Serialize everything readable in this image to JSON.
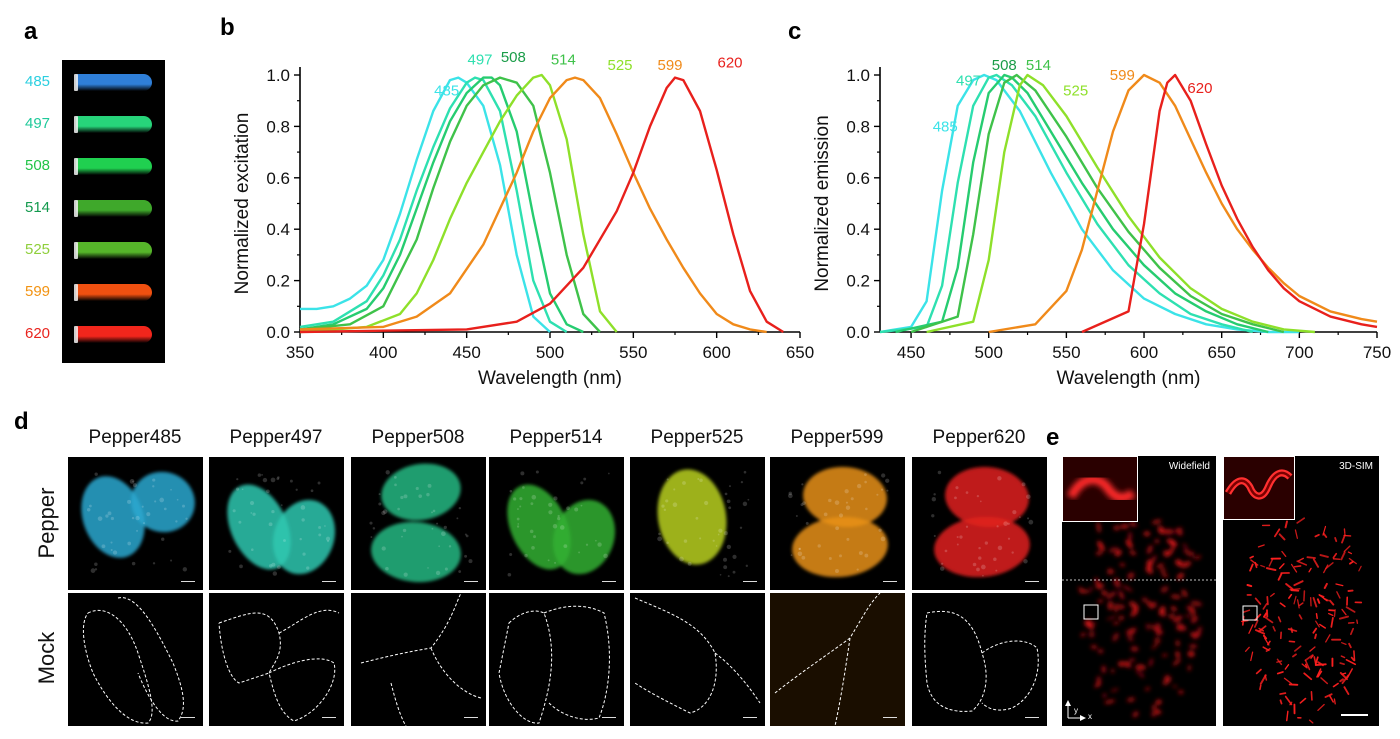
{
  "panels": {
    "a": "a",
    "b": "b",
    "c": "c",
    "d": "d",
    "e": "e"
  },
  "tubes": [
    {
      "label": "485",
      "label_color": "#2bcfe0",
      "tube_color": "#2f7fd8"
    },
    {
      "label": "497",
      "label_color": "#1fc99a",
      "tube_color": "#27d47a"
    },
    {
      "label": "508",
      "label_color": "#22c447",
      "tube_color": "#20d050"
    },
    {
      "label": "514",
      "label_color": "#139a4e",
      "tube_color": "#3fa82b"
    },
    {
      "label": "525",
      "label_color": "#8fcf3c",
      "tube_color": "#56b52a"
    },
    {
      "label": "599",
      "label_color": "#f29312",
      "tube_color": "#f05010"
    },
    {
      "label": "620",
      "label_color": "#e8241e",
      "tube_color": "#f2261c"
    }
  ],
  "chart_data": [
    {
      "type": "line",
      "panel": "b",
      "xlabel": "Wavelength (nm)",
      "ylabel": "Normalized excitation",
      "xlim": [
        350,
        650
      ],
      "ylim": [
        0,
        1.0
      ],
      "xticks": [
        "350",
        "400",
        "450",
        "500",
        "550",
        "600",
        "650"
      ],
      "yticks": [
        "0.0",
        "0.2",
        "0.4",
        "0.6",
        "0.8",
        "1.0"
      ],
      "series": [
        {
          "name": "485",
          "color": "#3be3e8",
          "x": [
            350,
            360,
            370,
            380,
            390,
            400,
            410,
            420,
            430,
            440,
            445,
            450,
            460,
            470,
            480,
            490,
            500
          ],
          "y": [
            0.09,
            0.09,
            0.1,
            0.13,
            0.18,
            0.28,
            0.46,
            0.67,
            0.86,
            0.98,
            0.99,
            0.97,
            0.88,
            0.65,
            0.3,
            0.06,
            0.0
          ]
        },
        {
          "name": "497",
          "color": "#2ee0b0",
          "x": [
            350,
            370,
            390,
            400,
            410,
            420,
            430,
            440,
            450,
            455,
            460,
            470,
            480,
            490,
            500,
            510
          ],
          "y": [
            0.02,
            0.04,
            0.12,
            0.22,
            0.36,
            0.55,
            0.72,
            0.87,
            0.97,
            0.99,
            0.98,
            0.86,
            0.55,
            0.2,
            0.04,
            0.0
          ]
        },
        {
          "name": "508",
          "color": "#26cc70",
          "x": [
            350,
            370,
            390,
            400,
            410,
            420,
            430,
            440,
            450,
            460,
            465,
            470,
            480,
            490,
            500,
            510,
            520
          ],
          "y": [
            0.01,
            0.03,
            0.09,
            0.17,
            0.3,
            0.48,
            0.66,
            0.82,
            0.93,
            0.99,
            0.99,
            0.96,
            0.78,
            0.45,
            0.15,
            0.03,
            0.0
          ]
        },
        {
          "name": "514",
          "color": "#3fc24a",
          "x": [
            350,
            380,
            400,
            420,
            430,
            440,
            450,
            460,
            470,
            480,
            490,
            500,
            510,
            520,
            530
          ],
          "y": [
            0.01,
            0.03,
            0.1,
            0.36,
            0.56,
            0.74,
            0.88,
            0.96,
            0.99,
            0.97,
            0.88,
            0.62,
            0.3,
            0.07,
            0.0
          ]
        },
        {
          "name": "525",
          "color": "#8ee02a",
          "x": [
            350,
            390,
            410,
            420,
            430,
            440,
            450,
            460,
            470,
            480,
            490,
            495,
            500,
            510,
            520,
            530,
            540
          ],
          "y": [
            0.0,
            0.02,
            0.07,
            0.15,
            0.28,
            0.44,
            0.58,
            0.7,
            0.82,
            0.92,
            0.99,
            1.0,
            0.96,
            0.75,
            0.38,
            0.08,
            0.0
          ]
        },
        {
          "name": "599",
          "color": "#f08a1a",
          "x": [
            350,
            400,
            420,
            440,
            460,
            480,
            490,
            500,
            510,
            515,
            520,
            530,
            540,
            550,
            560,
            570,
            580,
            590,
            600,
            610,
            620,
            630
          ],
          "y": [
            0.01,
            0.02,
            0.06,
            0.15,
            0.34,
            0.62,
            0.78,
            0.91,
            0.98,
            0.99,
            0.98,
            0.91,
            0.77,
            0.62,
            0.48,
            0.36,
            0.25,
            0.15,
            0.07,
            0.03,
            0.01,
            0.0
          ]
        },
        {
          "name": "620",
          "color": "#e8201c",
          "x": [
            350,
            450,
            480,
            500,
            520,
            540,
            550,
            560,
            570,
            575,
            580,
            590,
            600,
            610,
            620,
            630,
            640
          ],
          "y": [
            0.0,
            0.01,
            0.04,
            0.11,
            0.25,
            0.47,
            0.62,
            0.8,
            0.95,
            0.99,
            0.98,
            0.86,
            0.63,
            0.38,
            0.16,
            0.04,
            0.0
          ]
        }
      ],
      "annotations": [
        {
          "text": "485",
          "x": 438,
          "y": 0.92,
          "color": "#3be3e8"
        },
        {
          "text": "497",
          "x": 458,
          "y": 1.04,
          "color": "#2ee0b0"
        },
        {
          "text": "508",
          "x": 478,
          "y": 1.05,
          "color": "#1a9c48"
        },
        {
          "text": "514",
          "x": 508,
          "y": 1.04,
          "color": "#3fc24a"
        },
        {
          "text": "525",
          "x": 542,
          "y": 1.02,
          "color": "#8ee02a"
        },
        {
          "text": "599",
          "x": 572,
          "y": 1.02,
          "color": "#f08a1a"
        },
        {
          "text": "620",
          "x": 608,
          "y": 1.03,
          "color": "#e8201c"
        }
      ]
    },
    {
      "type": "line",
      "panel": "c",
      "xlabel": "Wavelength (nm)",
      "ylabel": "Normalized emission",
      "xlim": [
        430,
        750
      ],
      "ylim": [
        0,
        1.0
      ],
      "xticks": [
        "450",
        "500",
        "550",
        "600",
        "650",
        "700",
        "750"
      ],
      "yticks": [
        "0.0",
        "0.2",
        "0.4",
        "0.6",
        "0.8",
        "1.0"
      ],
      "series": [
        {
          "name": "485",
          "color": "#3be3e8",
          "x": [
            430,
            450,
            460,
            470,
            480,
            490,
            497,
            505,
            520,
            540,
            560,
            580,
            600,
            620,
            640,
            660,
            680,
            700
          ],
          "y": [
            0.0,
            0.02,
            0.12,
            0.55,
            0.88,
            0.98,
            1.0,
            0.98,
            0.86,
            0.62,
            0.4,
            0.24,
            0.13,
            0.07,
            0.03,
            0.01,
            0.0,
            0.0
          ]
        },
        {
          "name": "497",
          "color": "#2ee0b0",
          "x": [
            430,
            460,
            470,
            480,
            490,
            500,
            505,
            515,
            530,
            550,
            570,
            590,
            610,
            630,
            650,
            670
          ],
          "y": [
            0.0,
            0.02,
            0.18,
            0.58,
            0.88,
            0.99,
            1.0,
            0.96,
            0.84,
            0.62,
            0.42,
            0.26,
            0.15,
            0.07,
            0.03,
            0.0
          ]
        },
        {
          "name": "508",
          "color": "#26cc70",
          "x": [
            440,
            470,
            480,
            490,
            500,
            510,
            515,
            525,
            540,
            560,
            580,
            600,
            620,
            640,
            660,
            680
          ],
          "y": [
            0.0,
            0.04,
            0.25,
            0.66,
            0.93,
            1.0,
            0.99,
            0.93,
            0.78,
            0.58,
            0.4,
            0.26,
            0.15,
            0.08,
            0.03,
            0.0
          ]
        },
        {
          "name": "514",
          "color": "#3fc24a",
          "x": [
            450,
            480,
            490,
            500,
            510,
            518,
            530,
            550,
            570,
            590,
            610,
            630,
            650,
            670,
            690
          ],
          "y": [
            0.0,
            0.06,
            0.38,
            0.77,
            0.97,
            1.0,
            0.94,
            0.76,
            0.56,
            0.39,
            0.25,
            0.14,
            0.07,
            0.03,
            0.0
          ]
        },
        {
          "name": "525",
          "color": "#8ee02a",
          "x": [
            460,
            490,
            500,
            510,
            520,
            525,
            535,
            550,
            570,
            590,
            610,
            630,
            650,
            670,
            690,
            710
          ],
          "y": [
            0.0,
            0.04,
            0.28,
            0.7,
            0.96,
            1.0,
            0.96,
            0.84,
            0.64,
            0.45,
            0.29,
            0.17,
            0.09,
            0.04,
            0.01,
            0.0
          ]
        },
        {
          "name": "599",
          "color": "#f08a1a",
          "x": [
            500,
            530,
            550,
            560,
            570,
            580,
            590,
            600,
            610,
            620,
            630,
            640,
            650,
            660,
            670,
            680,
            690,
            700,
            720,
            740,
            750
          ],
          "y": [
            0.0,
            0.03,
            0.16,
            0.32,
            0.55,
            0.78,
            0.94,
            1.0,
            0.97,
            0.88,
            0.75,
            0.62,
            0.5,
            0.4,
            0.32,
            0.25,
            0.19,
            0.14,
            0.08,
            0.05,
            0.04
          ]
        },
        {
          "name": "620",
          "color": "#e8201c",
          "x": [
            560,
            590,
            600,
            610,
            615,
            620,
            630,
            640,
            650,
            660,
            670,
            680,
            690,
            700,
            720,
            740,
            750
          ],
          "y": [
            0.0,
            0.08,
            0.42,
            0.86,
            0.97,
            1.0,
            0.9,
            0.73,
            0.57,
            0.44,
            0.33,
            0.24,
            0.17,
            0.12,
            0.06,
            0.03,
            0.02
          ]
        }
      ],
      "annotations": [
        {
          "text": "485",
          "x": 472,
          "y": 0.78,
          "color": "#3be3e8"
        },
        {
          "text": "497",
          "x": 487,
          "y": 0.96,
          "color": "#2ee0b0"
        },
        {
          "text": "508",
          "x": 510,
          "y": 1.02,
          "color": "#1a9c48"
        },
        {
          "text": "514",
          "x": 532,
          "y": 1.02,
          "color": "#3fc24a"
        },
        {
          "text": "525",
          "x": 556,
          "y": 0.92,
          "color": "#8ee02a"
        },
        {
          "text": "599",
          "x": 586,
          "y": 0.98,
          "color": "#f08a1a"
        },
        {
          "text": "620",
          "x": 636,
          "y": 0.93,
          "color": "#e8201c"
        }
      ]
    }
  ],
  "panel_d": {
    "columns": [
      "Pepper485",
      "Pepper497",
      "Pepper508",
      "Pepper514",
      "Pepper525",
      "Pepper599",
      "Pepper620"
    ],
    "colors": [
      "#2aa8d0",
      "#2ec8b0",
      "#24b883",
      "#33b033",
      "#b8d022",
      "#e89018",
      "#e0221c"
    ],
    "rows": [
      "Pepper",
      "Mock"
    ]
  },
  "panel_e": {
    "labels": [
      "Widefield",
      "3D-SIM"
    ],
    "axis_y": "y",
    "axis_x": "x"
  }
}
